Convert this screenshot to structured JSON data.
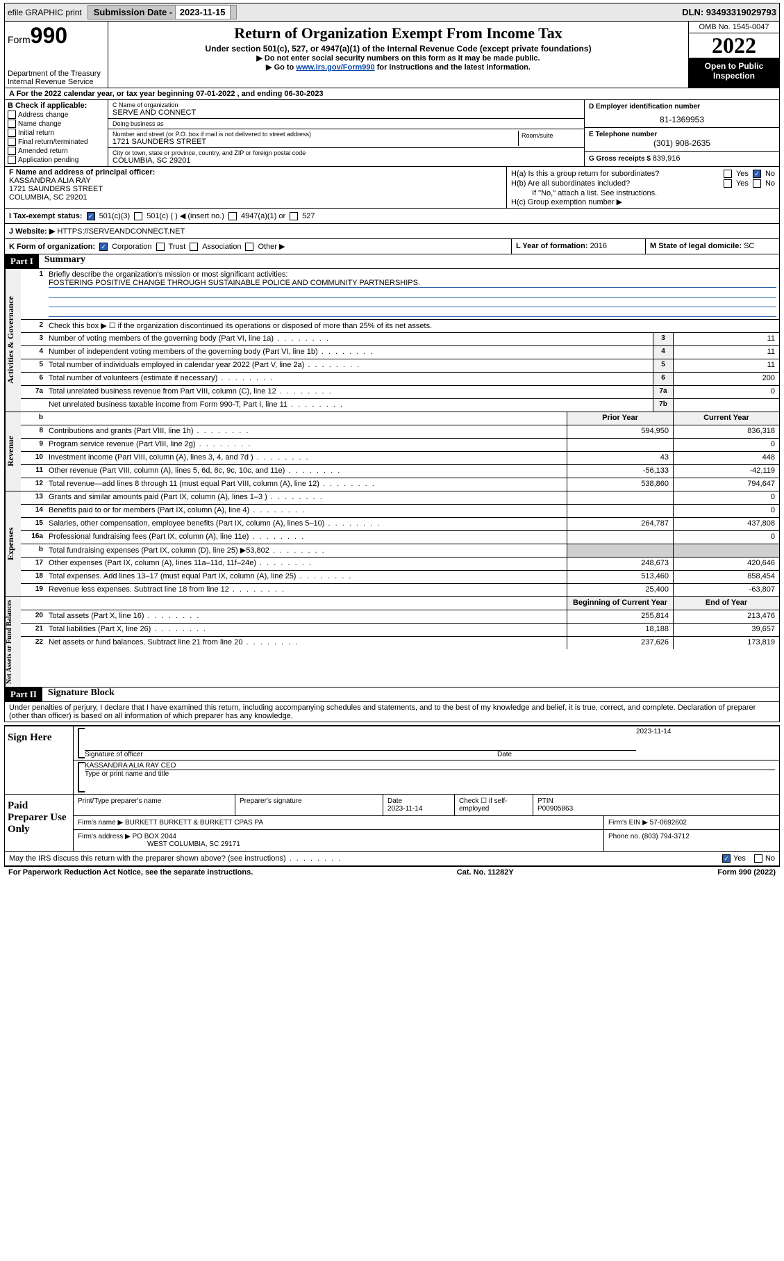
{
  "topbar": {
    "efile": "efile GRAPHIC print",
    "sub_label": "Submission Date - ",
    "sub_date": "2023-11-15",
    "dln": "DLN: 93493319029793"
  },
  "header": {
    "form_word": "Form",
    "form_num": "990",
    "dept": "Department of the Treasury",
    "irs": "Internal Revenue Service",
    "title": "Return of Organization Exempt From Income Tax",
    "sub1": "Under section 501(c), 527, or 4947(a)(1) of the Internal Revenue Code (except private foundations)",
    "sub2": "▶ Do not enter social security numbers on this form as it may be made public.",
    "sub3_pre": "▶ Go to ",
    "sub3_link": "www.irs.gov/Form990",
    "sub3_post": " for instructions and the latest information.",
    "omb": "OMB No. 1545-0047",
    "year": "2022",
    "open": "Open to Public Inspection"
  },
  "rowA": "A For the 2022 calendar year, or tax year beginning 07-01-2022   , and ending 06-30-2023",
  "colB": {
    "label": "B Check if applicable:",
    "items": [
      "Address change",
      "Name change",
      "Initial return",
      "Final return/terminated",
      "Amended return",
      "Application pending"
    ]
  },
  "colC": {
    "name_lbl": "C Name of organization",
    "name": "SERVE AND CONNECT",
    "dba_lbl": "Doing business as",
    "dba": "",
    "street_lbl": "Number and street (or P.O. box if mail is not delivered to street address)",
    "street": "1721 SAUNDERS STREET",
    "room_lbl": "Room/suite",
    "city_lbl": "City or town, state or province, country, and ZIP or foreign postal code",
    "city": "COLUMBIA, SC  29201"
  },
  "colDE": {
    "d_lbl": "D Employer identification number",
    "d_val": "81-1369953",
    "e_lbl": "E Telephone number",
    "e_val": "(301) 908-2635",
    "g_lbl": "G Gross receipts $ ",
    "g_val": "839,916"
  },
  "colF": {
    "lbl": "F Name and address of principal officer:",
    "l1": "KASSANDRA ALIA RAY",
    "l2": "1721 SAUNDERS STREET",
    "l3": "COLUMBIA, SC  29201"
  },
  "colH": {
    "ha": "H(a)  Is this a group return for subordinates?",
    "hb": "H(b)  Are all subordinates included?",
    "hb_note": "If \"No,\" attach a list. See instructions.",
    "hc": "H(c)  Group exemption number ▶",
    "yes": "Yes",
    "no": "No"
  },
  "rowI": {
    "lbl": "I   Tax-exempt status:",
    "o1": "501(c)(3)",
    "o2": "501(c) (  ) ◀ (insert no.)",
    "o3": "4947(a)(1) or",
    "o4": "527"
  },
  "rowJ": {
    "lbl": "J   Website: ▶ ",
    "val": "HTTPS://SERVEANDCONNECT.NET"
  },
  "rowK": {
    "lbl": "K Form of organization:",
    "o1": "Corporation",
    "o2": "Trust",
    "o3": "Association",
    "o4": "Other ▶"
  },
  "rowL": {
    "l_lbl": "L Year of formation: ",
    "l_val": "2016",
    "m_lbl": "M State of legal domicile: ",
    "m_val": "SC"
  },
  "part1": {
    "hdr": "Part I",
    "title": "Summary"
  },
  "gov": {
    "tab": "Activities & Governance",
    "l1_lbl": "Briefly describe the organization's mission or most significant activities:",
    "l1_val": "FOSTERING POSITIVE CHANGE THROUGH SUSTAINABLE POLICE AND COMMUNITY PARTNERSHIPS.",
    "l2": "Check this box ▶ ☐  if the organization discontinued its operations or disposed of more than 25% of its net assets.",
    "rows": [
      {
        "n": "3",
        "d": "Number of voting members of the governing body (Part VI, line 1a)",
        "lbl": "3",
        "val": "11"
      },
      {
        "n": "4",
        "d": "Number of independent voting members of the governing body (Part VI, line 1b)",
        "lbl": "4",
        "val": "11"
      },
      {
        "n": "5",
        "d": "Total number of individuals employed in calendar year 2022 (Part V, line 2a)",
        "lbl": "5",
        "val": "11"
      },
      {
        "n": "6",
        "d": "Total number of volunteers (estimate if necessary)",
        "lbl": "6",
        "val": "200"
      },
      {
        "n": "7a",
        "d": "Total unrelated business revenue from Part VIII, column (C), line 12",
        "lbl": "7a",
        "val": "0"
      },
      {
        "n": "",
        "d": "Net unrelated business taxable income from Form 990-T, Part I, line 11",
        "lbl": "7b",
        "val": ""
      }
    ]
  },
  "rev": {
    "tab": "Revenue",
    "hdr_prior": "Prior Year",
    "hdr_curr": "Current Year",
    "rows": [
      {
        "n": "8",
        "d": "Contributions and grants (Part VIII, line 1h)",
        "p": "594,950",
        "c": "836,318"
      },
      {
        "n": "9",
        "d": "Program service revenue (Part VIII, line 2g)",
        "p": "",
        "c": "0"
      },
      {
        "n": "10",
        "d": "Investment income (Part VIII, column (A), lines 3, 4, and 7d )",
        "p": "43",
        "c": "448"
      },
      {
        "n": "11",
        "d": "Other revenue (Part VIII, column (A), lines 5, 6d, 8c, 9c, 10c, and 11e)",
        "p": "-56,133",
        "c": "-42,119"
      },
      {
        "n": "12",
        "d": "Total revenue—add lines 8 through 11 (must equal Part VIII, column (A), line 12)",
        "p": "538,860",
        "c": "794,647"
      }
    ]
  },
  "exp": {
    "tab": "Expenses",
    "rows": [
      {
        "n": "13",
        "d": "Grants and similar amounts paid (Part IX, column (A), lines 1–3 )",
        "p": "",
        "c": "0"
      },
      {
        "n": "14",
        "d": "Benefits paid to or for members (Part IX, column (A), line 4)",
        "p": "",
        "c": "0"
      },
      {
        "n": "15",
        "d": "Salaries, other compensation, employee benefits (Part IX, column (A), lines 5–10)",
        "p": "264,787",
        "c": "437,808"
      },
      {
        "n": "16a",
        "d": "Professional fundraising fees (Part IX, column (A), line 11e)",
        "p": "",
        "c": "0"
      },
      {
        "n": "b",
        "d": "Total fundraising expenses (Part IX, column (D), line 25) ▶53,802",
        "p": "grey",
        "c": "grey"
      },
      {
        "n": "17",
        "d": "Other expenses (Part IX, column (A), lines 11a–11d, 11f–24e)",
        "p": "248,673",
        "c": "420,646"
      },
      {
        "n": "18",
        "d": "Total expenses. Add lines 13–17 (must equal Part IX, column (A), line 25)",
        "p": "513,460",
        "c": "858,454"
      },
      {
        "n": "19",
        "d": "Revenue less expenses. Subtract line 18 from line 12",
        "p": "25,400",
        "c": "-63,807"
      }
    ]
  },
  "na": {
    "tab": "Net Assets or Fund Balances",
    "hdr_beg": "Beginning of Current Year",
    "hdr_end": "End of Year",
    "rows": [
      {
        "n": "20",
        "d": "Total assets (Part X, line 16)",
        "p": "255,814",
        "c": "213,476"
      },
      {
        "n": "21",
        "d": "Total liabilities (Part X, line 26)",
        "p": "18,188",
        "c": "39,657"
      },
      {
        "n": "22",
        "d": "Net assets or fund balances. Subtract line 21 from line 20",
        "p": "237,626",
        "c": "173,819"
      }
    ]
  },
  "part2": {
    "hdr": "Part II",
    "title": "Signature Block",
    "decl": "Under penalties of perjury, I declare that I have examined this return, including accompanying schedules and statements, and to the best of my knowledge and belief, it is true, correct, and complete. Declaration of preparer (other than officer) is based on all information of which preparer has any knowledge."
  },
  "sign": {
    "lbl": "Sign Here",
    "sig_lbl": "Signature of officer",
    "date_lbl": "Date",
    "date": "2023-11-14",
    "name": "KASSANDRA ALIA RAY CEO",
    "name_lbl": "Type or print name and title"
  },
  "prep": {
    "lbl": "Paid Preparer Use Only",
    "h1": "Print/Type preparer's name",
    "h2": "Preparer's signature",
    "h3_lbl": "Date",
    "h3": "2023-11-14",
    "h4_lbl": "Check ☐ if self-employed",
    "h5_lbl": "PTIN",
    "h5": "P00905863",
    "firm_lbl": "Firm's name    ▶ ",
    "firm": "BURKETT BURKETT & BURKETT CPAS PA",
    "ein_lbl": "Firm's EIN ▶ ",
    "ein": "57-0692602",
    "addr_lbl": "Firm's address ▶ ",
    "addr1": "PO BOX 2044",
    "addr2": "WEST COLUMBIA, SC  29171",
    "phone_lbl": "Phone no. ",
    "phone": "(803) 794-3712"
  },
  "discuss": {
    "q": "May the IRS discuss this return with the preparer shown above? (see instructions)",
    "yes": "Yes",
    "no": "No"
  },
  "footer": {
    "l": "For Paperwork Reduction Act Notice, see the separate instructions.",
    "c": "Cat. No. 11282Y",
    "r": "Form 990 (2022)"
  }
}
